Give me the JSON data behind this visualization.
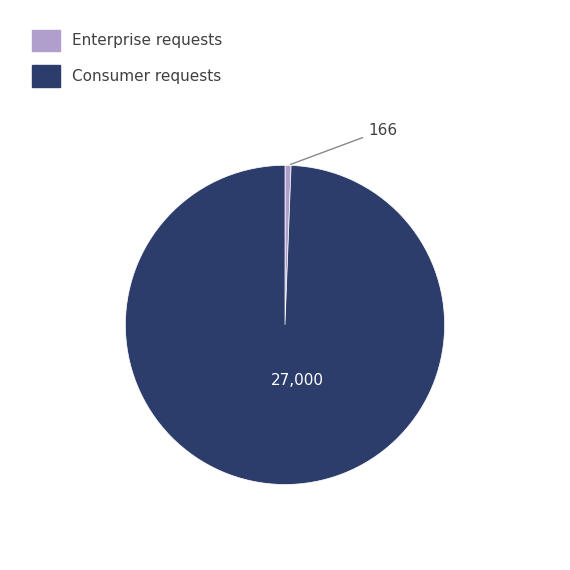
{
  "labels": [
    "Enterprise requests",
    "Consumer requests"
  ],
  "values": [
    166,
    27000
  ],
  "colors": [
    "#b09fcc",
    "#2d3d6b"
  ],
  "label_27000": "27,000",
  "label_166": "166",
  "legend_labels": [
    "Enterprise requests",
    "Consumer requests"
  ],
  "legend_colors": [
    "#b09fcc",
    "#2d3d6b"
  ],
  "bg_color": "#ffffff",
  "text_color": "#404040",
  "annotation_color": "#888888",
  "font_size_labels": 11,
  "font_size_legend": 11,
  "startangle": 90,
  "wedge_linewidth": 0.5,
  "wedge_edgecolor": "#ffffff"
}
